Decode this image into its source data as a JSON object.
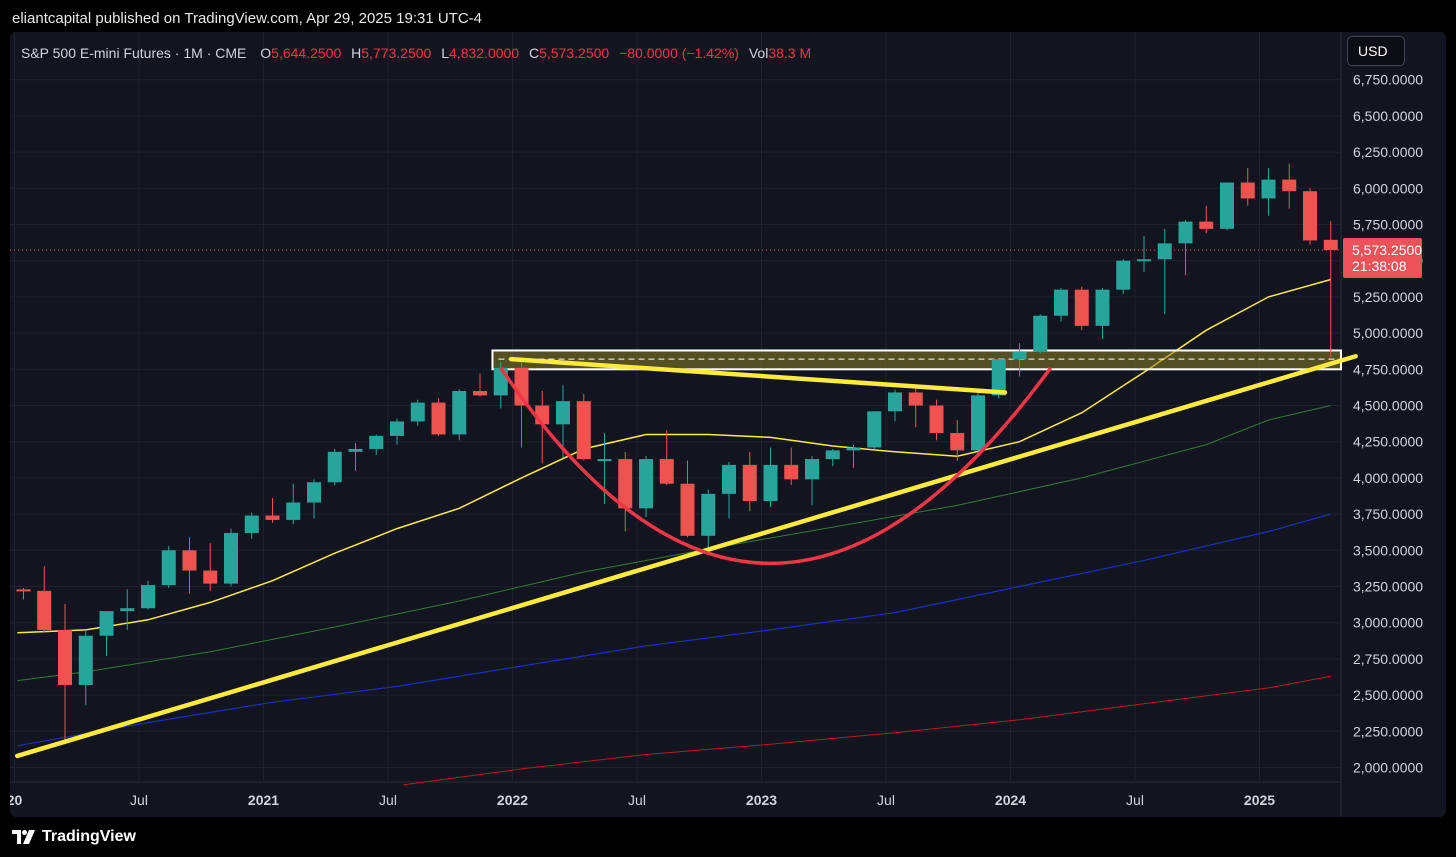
{
  "header": {
    "publisher": "eliantcapital published on TradingView.com, Apr 29, 2025 19:31 UTC-4"
  },
  "legend": {
    "symbol": "S&P 500 E-mini Futures · 1M · CME",
    "open_label": "O",
    "open": "5,644.2500",
    "high_label": "H",
    "high": "5,773.2500",
    "low_label": "L",
    "low": "4,832.0000",
    "close_label": "C",
    "close": "5,573.2500",
    "change": "−80.0000 (−1.42%)",
    "vol_label": "Vol",
    "vol": "38.3 M"
  },
  "currency_button": "USD",
  "last_price": {
    "price": "5,573.2500",
    "countdown": "21:38:08"
  },
  "footer": {
    "brand": "TradingView"
  },
  "colors": {
    "up": "#26a69a",
    "down": "#ef5350",
    "background": "#121420",
    "highlight": "#ffeb3b",
    "cup": "#f23645"
  },
  "chart_data": {
    "type": "candlestick",
    "interval": "1M",
    "ylim": [
      1880,
      6960
    ],
    "y_ticks": [
      "2,000.0000",
      "2,250.0000",
      "2,500.0000",
      "2,750.0000",
      "3,000.0000",
      "3,250.0000",
      "3,500.0000",
      "3,750.0000",
      "4,000.0000",
      "4,250.0000",
      "4,500.0000",
      "4,750.0000",
      "5,000.0000",
      "5,250.0000",
      "5,500.0000",
      "5,750.0000",
      "6,000.0000",
      "6,250.0000",
      "6,500.0000",
      "6,750.0000"
    ],
    "x_ticks": [
      {
        "label": "20",
        "month": 0,
        "bold": true
      },
      {
        "label": "Jul",
        "month": 6,
        "bold": false
      },
      {
        "label": "2021",
        "month": 12,
        "bold": true
      },
      {
        "label": "Jul",
        "month": 18,
        "bold": false
      },
      {
        "label": "2022",
        "month": 24,
        "bold": true
      },
      {
        "label": "Jul",
        "month": 30,
        "bold": false
      },
      {
        "label": "2023",
        "month": 36,
        "bold": true
      },
      {
        "label": "Jul",
        "month": 42,
        "bold": false
      },
      {
        "label": "2024",
        "month": 48,
        "bold": true
      },
      {
        "label": "Jul",
        "month": 54,
        "bold": false
      },
      {
        "label": "2025",
        "month": 60,
        "bold": true
      }
    ],
    "candles": [
      {
        "m": 0,
        "o": 3230,
        "h": 3240,
        "l": 3160,
        "c": 3220
      },
      {
        "m": 1,
        "o": 3220,
        "h": 3390,
        "l": 2930,
        "c": 2950
      },
      {
        "m": 2,
        "o": 2950,
        "h": 3130,
        "l": 2180,
        "c": 2570
      },
      {
        "m": 3,
        "o": 2570,
        "h": 2950,
        "l": 2430,
        "c": 2910
      },
      {
        "m": 4,
        "o": 2910,
        "h": 3060,
        "l": 2770,
        "c": 3080
      },
      {
        "m": 5,
        "o": 3080,
        "h": 3230,
        "l": 2950,
        "c": 3100
      },
      {
        "m": 6,
        "o": 3100,
        "h": 3290,
        "l": 3090,
        "c": 3260
      },
      {
        "m": 7,
        "o": 3260,
        "h": 3530,
        "l": 3240,
        "c": 3500
      },
      {
        "m": 8,
        "o": 3500,
        "h": 3590,
        "l": 3200,
        "c": 3360
      },
      {
        "m": 9,
        "o": 3360,
        "h": 3550,
        "l": 3220,
        "c": 3270
      },
      {
        "m": 10,
        "o": 3270,
        "h": 3650,
        "l": 3250,
        "c": 3620
      },
      {
        "m": 11,
        "o": 3620,
        "h": 3760,
        "l": 3580,
        "c": 3740
      },
      {
        "m": 12,
        "o": 3740,
        "h": 3860,
        "l": 3690,
        "c": 3710
      },
      {
        "m": 13,
        "o": 3710,
        "h": 3960,
        "l": 3680,
        "c": 3830
      },
      {
        "m": 14,
        "o": 3830,
        "h": 3990,
        "l": 3720,
        "c": 3970
      },
      {
        "m": 15,
        "o": 3970,
        "h": 4200,
        "l": 3950,
        "c": 4180
      },
      {
        "m": 16,
        "o": 4180,
        "h": 4240,
        "l": 4050,
        "c": 4200
      },
      {
        "m": 17,
        "o": 4200,
        "h": 4300,
        "l": 4160,
        "c": 4290
      },
      {
        "m": 18,
        "o": 4290,
        "h": 4410,
        "l": 4230,
        "c": 4390
      },
      {
        "m": 19,
        "o": 4390,
        "h": 4540,
        "l": 4360,
        "c": 4520
      },
      {
        "m": 20,
        "o": 4520,
        "h": 4550,
        "l": 4290,
        "c": 4300
      },
      {
        "m": 21,
        "o": 4300,
        "h": 4610,
        "l": 4260,
        "c": 4600
      },
      {
        "m": 22,
        "o": 4600,
        "h": 4720,
        "l": 4560,
        "c": 4570
      },
      {
        "m": 23,
        "o": 4570,
        "h": 4800,
        "l": 4480,
        "c": 4760
      },
      {
        "m": 24,
        "o": 4760,
        "h": 4810,
        "l": 4210,
        "c": 4500
      },
      {
        "m": 25,
        "o": 4500,
        "h": 4600,
        "l": 4100,
        "c": 4370
      },
      {
        "m": 26,
        "o": 4370,
        "h": 4640,
        "l": 4140,
        "c": 4530
      },
      {
        "m": 27,
        "o": 4530,
        "h": 4580,
        "l": 4120,
        "c": 4130
      },
      {
        "m": 28,
        "o": 4130,
        "h": 4310,
        "l": 3820,
        "c": 4130
      },
      {
        "m": 29,
        "o": 4130,
        "h": 4180,
        "l": 3630,
        "c": 3790
      },
      {
        "m": 30,
        "o": 3790,
        "h": 4150,
        "l": 3730,
        "c": 4130
      },
      {
        "m": 31,
        "o": 4130,
        "h": 4330,
        "l": 3950,
        "c": 3960
      },
      {
        "m": 32,
        "o": 3960,
        "h": 4120,
        "l": 3590,
        "c": 3600
      },
      {
        "m": 33,
        "o": 3600,
        "h": 3920,
        "l": 3510,
        "c": 3890
      },
      {
        "m": 34,
        "o": 3890,
        "h": 4110,
        "l": 3720,
        "c": 4090
      },
      {
        "m": 35,
        "o": 4090,
        "h": 4180,
        "l": 3770,
        "c": 3840
      },
      {
        "m": 36,
        "o": 3840,
        "h": 4210,
        "l": 3800,
        "c": 4090
      },
      {
        "m": 37,
        "o": 4090,
        "h": 4210,
        "l": 3950,
        "c": 3990
      },
      {
        "m": 38,
        "o": 3990,
        "h": 4150,
        "l": 3810,
        "c": 4130
      },
      {
        "m": 39,
        "o": 4130,
        "h": 4200,
        "l": 4080,
        "c": 4190
      },
      {
        "m": 40,
        "o": 4190,
        "h": 4230,
        "l": 4070,
        "c": 4210
      },
      {
        "m": 41,
        "o": 4210,
        "h": 4460,
        "l": 4200,
        "c": 4460
      },
      {
        "m": 42,
        "o": 4460,
        "h": 4610,
        "l": 4390,
        "c": 4590
      },
      {
        "m": 43,
        "o": 4590,
        "h": 4640,
        "l": 4350,
        "c": 4500
      },
      {
        "m": 44,
        "o": 4500,
        "h": 4540,
        "l": 4260,
        "c": 4310
      },
      {
        "m": 45,
        "o": 4310,
        "h": 4400,
        "l": 4120,
        "c": 4190
      },
      {
        "m": 46,
        "o": 4190,
        "h": 4600,
        "l": 4170,
        "c": 4570
      },
      {
        "m": 47,
        "o": 4570,
        "h": 4820,
        "l": 4550,
        "c": 4820
      },
      {
        "m": 48,
        "o": 4820,
        "h": 4930,
        "l": 4700,
        "c": 4870
      },
      {
        "m": 49,
        "o": 4870,
        "h": 5130,
        "l": 4860,
        "c": 5120
      },
      {
        "m": 50,
        "o": 5120,
        "h": 5310,
        "l": 5080,
        "c": 5300
      },
      {
        "m": 51,
        "o": 5300,
        "h": 5320,
        "l": 5020,
        "c": 5050
      },
      {
        "m": 52,
        "o": 5050,
        "h": 5310,
        "l": 4960,
        "c": 5300
      },
      {
        "m": 53,
        "o": 5300,
        "h": 5510,
        "l": 5270,
        "c": 5500
      },
      {
        "m": 54,
        "o": 5500,
        "h": 5670,
        "l": 5420,
        "c": 5510
      },
      {
        "m": 55,
        "o": 5510,
        "h": 5720,
        "l": 5130,
        "c": 5620
      },
      {
        "m": 56,
        "o": 5620,
        "h": 5780,
        "l": 5400,
        "c": 5770
      },
      {
        "m": 57,
        "o": 5770,
        "h": 5880,
        "l": 5690,
        "c": 5720
      },
      {
        "m": 58,
        "o": 5720,
        "h": 6040,
        "l": 5710,
        "c": 6040
      },
      {
        "m": 59,
        "o": 6040,
        "h": 6140,
        "l": 5880,
        "c": 5930
      },
      {
        "m": 60,
        "o": 5930,
        "h": 6140,
        "l": 5810,
        "c": 6060
      },
      {
        "m": 61,
        "o": 6060,
        "h": 6170,
        "l": 5860,
        "c": 5980
      },
      {
        "m": 62,
        "o": 5980,
        "h": 6000,
        "l": 5610,
        "c": 5640
      },
      {
        "m": 63,
        "o": 5644.25,
        "h": 5773.25,
        "l": 4832,
        "c": 5573.25
      }
    ],
    "ma_series": [
      {
        "color": "#ffeb3b",
        "width": 1.5,
        "points": [
          [
            -0.3,
            2930
          ],
          [
            3,
            2950
          ],
          [
            6,
            3020
          ],
          [
            9,
            3140
          ],
          [
            12,
            3290
          ],
          [
            15,
            3480
          ],
          [
            18,
            3650
          ],
          [
            21,
            3790
          ],
          [
            24,
            4000
          ],
          [
            27,
            4200
          ],
          [
            30,
            4300
          ],
          [
            33,
            4300
          ],
          [
            36,
            4280
          ],
          [
            39,
            4220
          ],
          [
            42,
            4180
          ],
          [
            45,
            4150
          ],
          [
            48,
            4250
          ],
          [
            51,
            4450
          ],
          [
            54,
            4730
          ],
          [
            57,
            5020
          ],
          [
            60,
            5250
          ],
          [
            63,
            5370
          ]
        ]
      },
      {
        "color": "#2e7d32",
        "width": 1,
        "points": [
          [
            -0.3,
            2600
          ],
          [
            3,
            2660
          ],
          [
            9,
            2800
          ],
          [
            15,
            2970
          ],
          [
            21,
            3150
          ],
          [
            27,
            3350
          ],
          [
            33,
            3510
          ],
          [
            39,
            3660
          ],
          [
            45,
            3810
          ],
          [
            51,
            4000
          ],
          [
            57,
            4230
          ],
          [
            60,
            4400
          ],
          [
            63,
            4500
          ]
        ]
      },
      {
        "color": "#1e2fbf",
        "width": 1.2,
        "points": [
          [
            -0.3,
            2150
          ],
          [
            6,
            2310
          ],
          [
            12,
            2450
          ],
          [
            18,
            2560
          ],
          [
            24,
            2700
          ],
          [
            30,
            2840
          ],
          [
            36,
            2950
          ],
          [
            42,
            3070
          ],
          [
            48,
            3250
          ],
          [
            54,
            3430
          ],
          [
            60,
            3630
          ],
          [
            63,
            3750
          ]
        ]
      },
      {
        "color": "#b71c1c",
        "width": 1,
        "points": [
          [
            18.3,
            1880
          ],
          [
            24,
            1990
          ],
          [
            30,
            2090
          ],
          [
            36,
            2160
          ],
          [
            42,
            2240
          ],
          [
            48,
            2330
          ],
          [
            54,
            2440
          ],
          [
            60,
            2550
          ],
          [
            63,
            2630
          ]
        ]
      }
    ],
    "annotations": {
      "trendline": {
        "color": "#ffeb3b",
        "from": [
          -0.3,
          2080
        ],
        "to": [
          64.2,
          4840
        ]
      },
      "descending_line": {
        "color": "#ffeb3b",
        "from": [
          23.5,
          4820
        ],
        "to": [
          47.3,
          4590
        ]
      },
      "cup": {
        "color": "#f23645",
        "from": [
          23,
          4760
        ],
        "bottom": [
          36,
          3410
        ],
        "to": [
          49.5,
          4760
        ]
      },
      "zone": {
        "top": 4880,
        "bottom": 4750,
        "mid": 4820,
        "from_month": 22.6
      }
    },
    "last_price_value": 5573.25
  }
}
